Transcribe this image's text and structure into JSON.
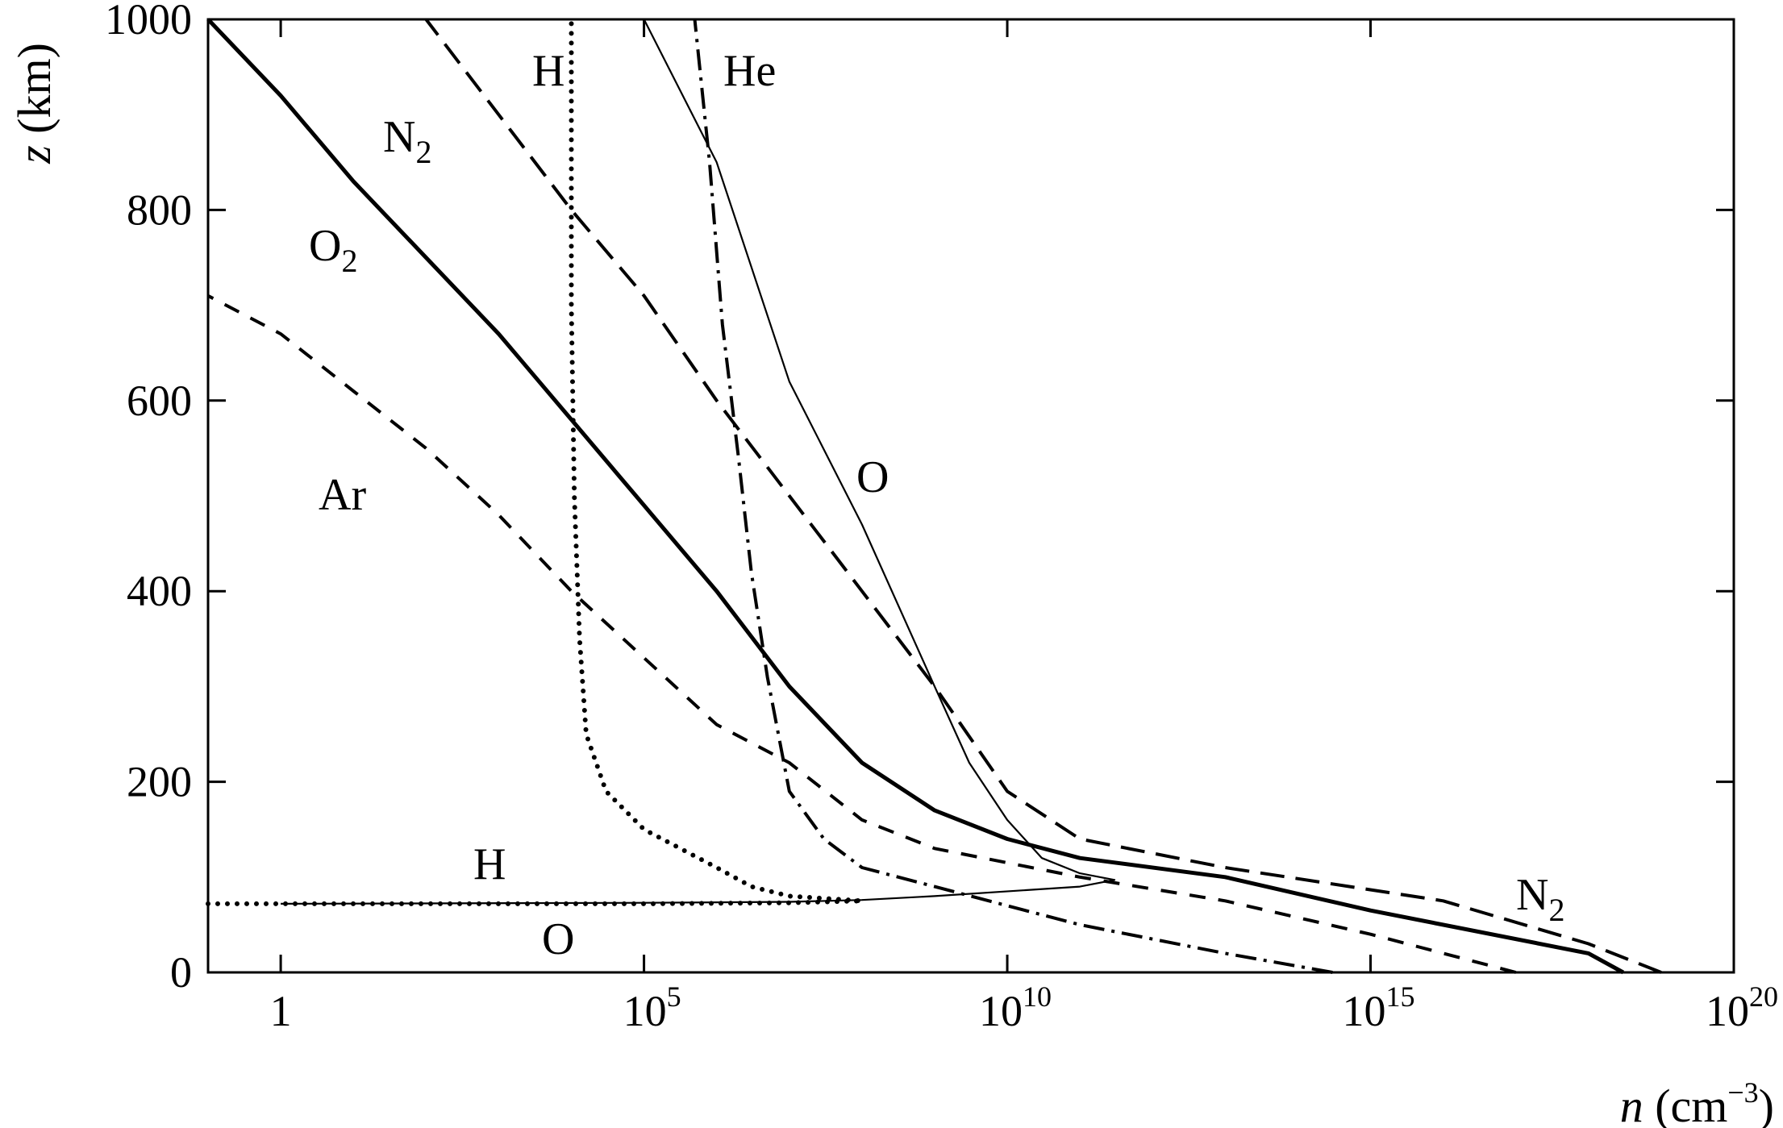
{
  "chart_data": {
    "type": "line",
    "title": "",
    "xlabel": {
      "var": "n",
      "unit_prefix": " (cm",
      "unit_exp": "−3",
      "unit_suffix": ")"
    },
    "ylabel": {
      "var": "z",
      "unit": " (km)"
    },
    "x_scale": "log",
    "xlim": [
      0.1,
      1e+20
    ],
    "ylim": [
      0,
      1000
    ],
    "x_ticks": [
      {
        "base": "1",
        "exp": "",
        "value": 1
      },
      {
        "base": "10",
        "exp": "5",
        "value": 100000.0
      },
      {
        "base": "10",
        "exp": "10",
        "value": 10000000000.0
      },
      {
        "base": "10",
        "exp": "15",
        "value": 1000000000000000.0
      },
      {
        "base": "10",
        "exp": "20",
        "value": 1e+20
      }
    ],
    "y_ticks": [
      0,
      200,
      400,
      600,
      800,
      1000
    ],
    "grid": false,
    "legend": "none",
    "series": [
      {
        "name": "N2",
        "label_base": "N",
        "label_sub": "2",
        "style": "long-dash",
        "points": [
          [
            1e+19,
            0
          ],
          [
            1e+18,
            30
          ],
          [
            1e+16,
            75
          ],
          [
            10000000000000.0,
            110
          ],
          [
            100000000000.0,
            140
          ],
          [
            10000000000.0,
            190
          ],
          [
            1000000000.0,
            300
          ],
          [
            100000000.0,
            400
          ],
          [
            10000000.0,
            500
          ],
          [
            1000000.0,
            600
          ],
          [
            100000.0,
            710
          ],
          [
            10000.0,
            800
          ],
          [
            1000.0,
            900
          ],
          [
            100,
            1000
          ]
        ]
      },
      {
        "name": "O2",
        "label_base": "O",
        "label_sub": "2",
        "style": "solid-thick",
        "points": [
          [
            3e+18,
            0
          ],
          [
            1e+18,
            20
          ],
          [
            1000000000000000.0,
            65
          ],
          [
            10000000000000.0,
            100
          ],
          [
            100000000000.0,
            120
          ],
          [
            10000000000.0,
            140
          ],
          [
            1000000000.0,
            170
          ],
          [
            100000000.0,
            220
          ],
          [
            10000000.0,
            300
          ],
          [
            1000000.0,
            400
          ],
          [
            100000.0,
            490
          ],
          [
            10000.0,
            580
          ],
          [
            1000.0,
            670
          ],
          [
            100,
            750
          ],
          [
            10,
            830
          ],
          [
            1,
            920
          ],
          [
            0.1,
            1000
          ]
        ]
      },
      {
        "name": "Ar",
        "label_base": "Ar",
        "label_sub": "",
        "style": "dash",
        "points": [
          [
            1e+17,
            0
          ],
          [
            1000000000000000.0,
            40
          ],
          [
            10000000000000.0,
            75
          ],
          [
            100000000000.0,
            100
          ],
          [
            1000000000.0,
            130
          ],
          [
            100000000.0,
            160
          ],
          [
            10000000.0,
            220
          ],
          [
            1000000.0,
            260
          ],
          [
            100000.0,
            330
          ],
          [
            10000.0,
            400
          ],
          [
            1000.0,
            480
          ],
          [
            100,
            550
          ],
          [
            10,
            610
          ],
          [
            1,
            670
          ],
          [
            0.1,
            710
          ]
        ]
      },
      {
        "name": "He",
        "label_base": "He",
        "label_sub": "",
        "style": "dash-dot",
        "points": [
          [
            300000000000000.0,
            0
          ],
          [
            10000000000000.0,
            20
          ],
          [
            100000000000.0,
            50
          ],
          [
            10000000000.0,
            70
          ],
          [
            1000000000.0,
            90
          ],
          [
            100000000.0,
            110
          ],
          [
            30000000.0,
            140
          ],
          [
            10000000.0,
            190
          ],
          [
            5000000.0,
            310
          ],
          [
            3000000.0,
            420
          ],
          [
            2000000.0,
            540
          ],
          [
            1200000.0,
            680
          ],
          [
            800000.0,
            850
          ],
          [
            500000.0,
            1000
          ]
        ]
      },
      {
        "name": "O",
        "label_base": "O",
        "label_sub": "",
        "style": "solid-thin",
        "points": [
          [
            1,
            72
          ],
          [
            100000.0,
            73
          ],
          [
            10000000.0,
            74
          ],
          [
            100000000.0,
            76
          ],
          [
            1000000000.0,
            80
          ],
          [
            100000000000.0,
            90
          ],
          [
            300000000000.0,
            97
          ],
          [
            100000000000.0,
            104
          ],
          [
            30000000000.0,
            120
          ],
          [
            10000000000.0,
            160
          ],
          [
            3000000000.0,
            220
          ],
          [
            1000000000.0,
            300
          ],
          [
            100000000.0,
            470
          ],
          [
            10000000.0,
            620
          ],
          [
            1000000.0,
            850
          ],
          [
            100000.0,
            1000
          ]
        ]
      },
      {
        "name": "H",
        "label_base": "H",
        "label_sub": "",
        "style": "dotted",
        "points": [
          [
            0.1,
            72
          ],
          [
            1,
            72
          ],
          [
            100000.0,
            72
          ],
          [
            10000000.0,
            73
          ],
          [
            100000000.0,
            75
          ],
          [
            10000000.0,
            80
          ],
          [
            3000000.0,
            90
          ],
          [
            1000000.0,
            110
          ],
          [
            100000.0,
            150
          ],
          [
            30000.0,
            190
          ],
          [
            16000.0,
            250
          ],
          [
            13000.0,
            350
          ],
          [
            11000.0,
            500
          ],
          [
            10000.0,
            700
          ],
          [
            10000.0,
            850
          ],
          [
            10000.0,
            1000
          ]
        ]
      }
    ]
  }
}
